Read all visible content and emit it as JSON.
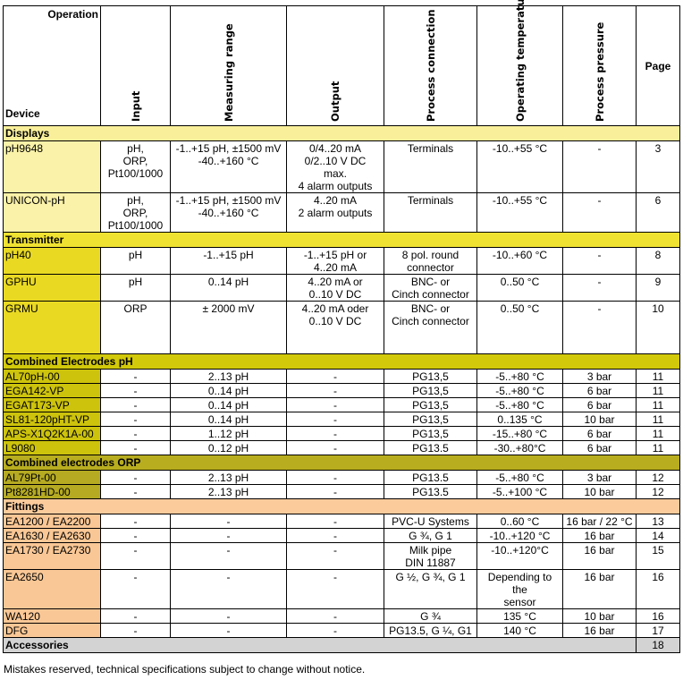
{
  "header": {
    "operation": "Operation",
    "device": "Device",
    "columns": [
      "Input",
      "Measuring range",
      "Output",
      "Process connection",
      "Operating temperature",
      "Process pressure"
    ],
    "page": "Page"
  },
  "sections": [
    {
      "title": "Displays",
      "color": "#f9ef9b",
      "device_color": "#faf2a8",
      "rows": [
        {
          "device": "pH9648",
          "input": "pH,\nORP,\nPt100/1000",
          "range": "-1..+15 pH, ±1500 mV\n-40..+160 °C",
          "output": "0/4..20 mA\n0/2..10 V DC\nmax.\n4 alarm outputs",
          "connection": "Terminals",
          "temperature": "-10..+55 °C",
          "pressure": "-",
          "page": "3"
        },
        {
          "device": "UNICON-pH",
          "input": "pH,\nORP,\nPt100/1000",
          "range": "-1..+15 pH, ±1500 mV\n-40..+160 °C",
          "output": "4..20 mA\n2 alarm outputs",
          "connection": "Terminals",
          "temperature": "-10..+55 °C",
          "pressure": "-",
          "page": "6"
        }
      ]
    },
    {
      "title": "Transmitter",
      "color": "#f0e231",
      "device_color": "#e9d923",
      "rows": [
        {
          "device": "pH40",
          "input": "pH",
          "range": "-1..+15 pH",
          "output": "-1..+15 pH or\n4..20 mA",
          "connection": "8 pol. round\nconnector",
          "temperature": "-10..+60 °C",
          "pressure": "-",
          "page": "8"
        },
        {
          "device": "GPHU",
          "input": "pH",
          "range": "0..14 pH",
          "output": "4..20 mA or\n0..10 V DC",
          "connection": "BNC- or\nCinch connector",
          "temperature": "0..50 °C",
          "pressure": "-",
          "page": "9"
        },
        {
          "device": "GRMU",
          "input": "ORP",
          "range": "± 2000 mV",
          "output": "4..20 mA oder\n0..10 V DC",
          "connection": "BNC- or\nCinch connector",
          "temperature": "0..50 °C",
          "pressure": "-",
          "page": "10"
        }
      ]
    },
    {
      "title": "Combined Electrodes pH",
      "color": "#d2c90a",
      "device_color": "#cdc30c",
      "rows": [
        {
          "device": "AL70pH-00",
          "input": "-",
          "range": "2..13 pH",
          "output": "-",
          "connection": "PG13,5",
          "temperature": "-5..+80 °C",
          "pressure": "3 bar",
          "page": "11"
        },
        {
          "device": "EGA142-VP",
          "input": "-",
          "range": "0..14 pH",
          "output": "-",
          "connection": "PG13,5",
          "temperature": "-5..+80 °C",
          "pressure": "6 bar",
          "page": "11"
        },
        {
          "device": "EGAT173-VP",
          "input": "-",
          "range": "0..14 pH",
          "output": "-",
          "connection": "PG13,5",
          "temperature": "-5..+80 °C",
          "pressure": "6 bar",
          "page": "11"
        },
        {
          "device": "SL81-120pHT-VP",
          "input": "-",
          "range": "0..14 pH",
          "output": "-",
          "connection": "PG13,5",
          "temperature": "0..135 °C",
          "pressure": "10 bar",
          "page": "11"
        },
        {
          "device": "APS-X1Q2K1A-00",
          "input": "-",
          "range": "1..12 pH",
          "output": "-",
          "connection": "PG13,5",
          "temperature": "-15..+80 °C",
          "pressure": "6 bar",
          "page": "11"
        },
        {
          "device": "L9080",
          "input": "-",
          "range": "0..12 pH",
          "output": "-",
          "connection": "PG13.5",
          "temperature": "-30..+80°C",
          "pressure": "6 bar",
          "page": "11"
        }
      ]
    },
    {
      "title": "Combined electrodes ORP",
      "color": "#b8ad1f",
      "device_color": "#b5aa22",
      "rows": [
        {
          "device": "AL79Pt-00",
          "input": "-",
          "range": "2..13 pH",
          "output": "-",
          "connection": "PG13.5",
          "temperature": "-5..+80 °C",
          "pressure": "3 bar",
          "page": "12"
        },
        {
          "device": "Pt8281HD-00",
          "input": "-",
          "range": "2..13 pH",
          "output": "-",
          "connection": "PG13.5",
          "temperature": "-5..+100 °C",
          "pressure": "10 bar",
          "page": "12"
        }
      ]
    },
    {
      "title": "Fittings",
      "color": "#fbcb9c",
      "device_color": "#f9c795",
      "rows": [
        {
          "device": "EA1200 / EA2200",
          "input": "-",
          "range": "-",
          "output": "-",
          "connection": "PVC-U Systems",
          "temperature": "0..60 °C",
          "pressure": "16 bar / 22 °C",
          "page": "13"
        },
        {
          "device": "EA1630 / EA2630",
          "input": "-",
          "range": "-",
          "output": "-",
          "connection": "G ¾, G 1",
          "temperature": "-10..+120 °C",
          "pressure": "16 bar",
          "page": "14"
        },
        {
          "device": "EA1730 / EA2730",
          "input": "-",
          "range": "-",
          "output": "-",
          "connection": "Milk pipe\nDIN 11887",
          "temperature": "-10..+120°C",
          "pressure": "16 bar",
          "page": "15"
        },
        {
          "device": "EA2650",
          "input": "-",
          "range": "-",
          "output": "-",
          "connection": "G ½, G ¾, G 1",
          "temperature": "Depending to the\nsensor",
          "pressure": "16 bar",
          "page": "16"
        },
        {
          "device": "WA120",
          "input": "-",
          "range": "-",
          "output": "-",
          "connection": "G ¾",
          "temperature": "135 °C",
          "pressure": "10 bar",
          "page": "16"
        },
        {
          "device": "DFG",
          "input": "-",
          "range": "-",
          "output": "-",
          "connection": "PG13.5, G ¼, G1",
          "temperature": "140 °C",
          "pressure": "16 bar",
          "page": "17"
        }
      ]
    },
    {
      "title": "Accessories",
      "color": "#d3d3d3",
      "page": "18",
      "rows": []
    }
  ],
  "footer": "Mistakes reserved, technical specifications subject to change without notice."
}
